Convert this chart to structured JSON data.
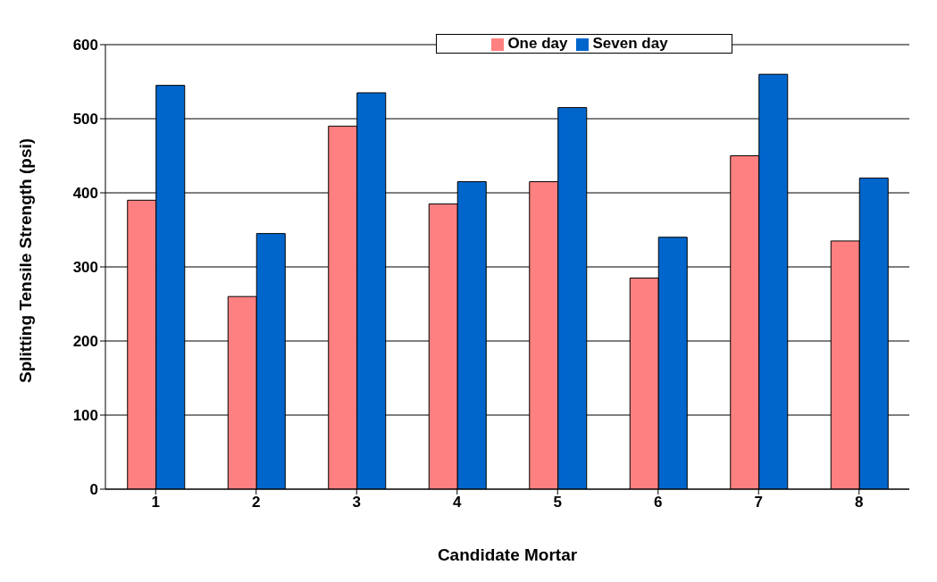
{
  "chart_data": {
    "type": "bar",
    "xlabel": "Candidate Mortar",
    "ylabel": "Splitting Tensile Strength (psi)",
    "categories": [
      "1",
      "2",
      "3",
      "4",
      "5",
      "6",
      "7",
      "8"
    ],
    "series": [
      {
        "name": "One day",
        "color": "#ff8080",
        "values": [
          390,
          260,
          490,
          385,
          415,
          285,
          450,
          335
        ]
      },
      {
        "name": "Seven day",
        "color": "#0066cc",
        "values": [
          545,
          345,
          535,
          415,
          515,
          340,
          560,
          420
        ]
      }
    ],
    "ylim": [
      0,
      600
    ],
    "yticks": [
      0,
      100,
      200,
      300,
      400,
      500,
      600
    ],
    "grid": "y",
    "legend": "top"
  }
}
